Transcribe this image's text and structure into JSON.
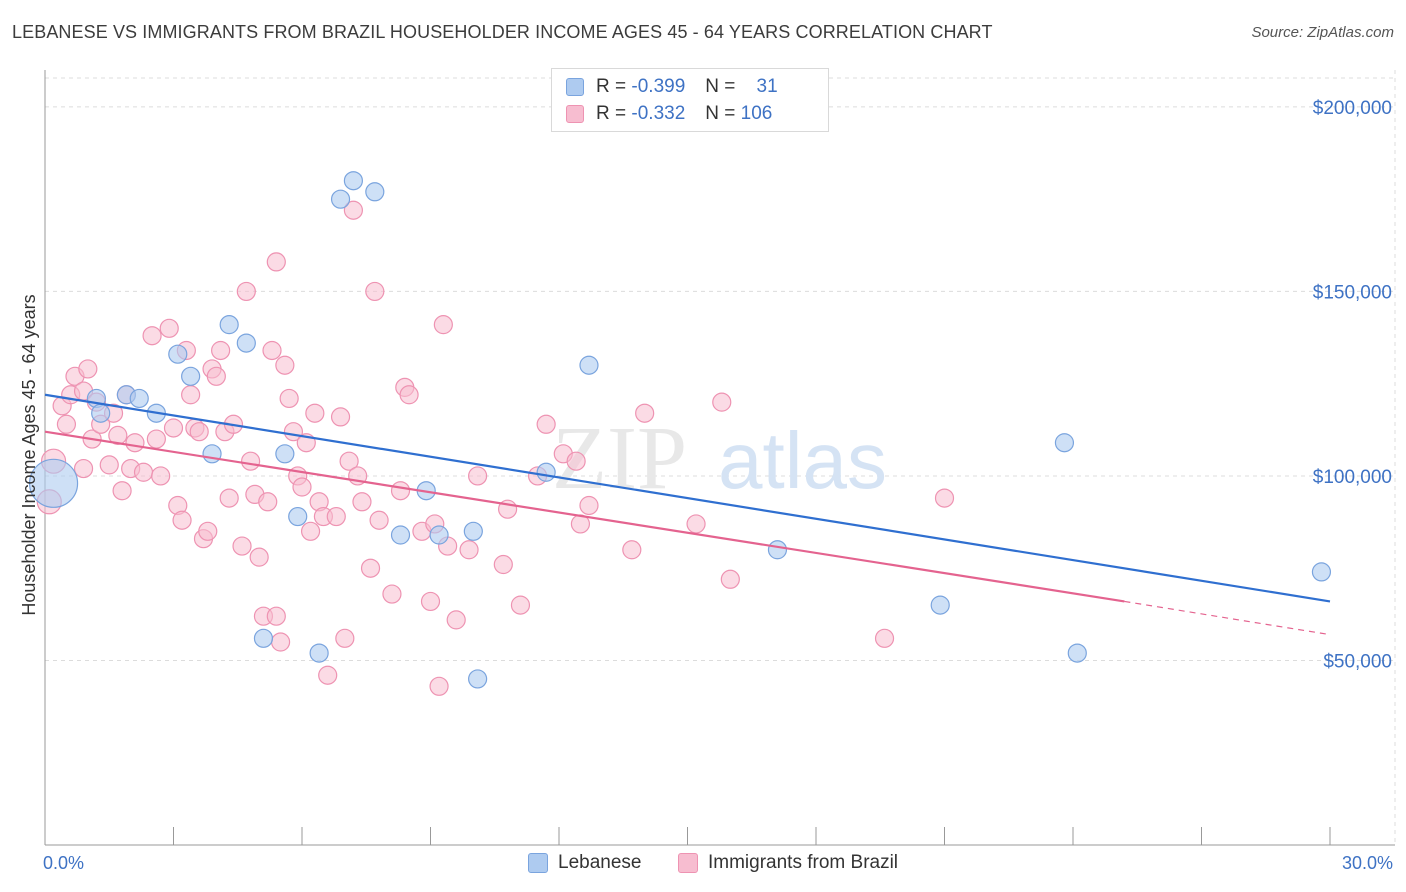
{
  "title": "LEBANESE VS IMMIGRANTS FROM BRAZIL HOUSEHOLDER INCOME AGES 45 - 64 YEARS CORRELATION CHART",
  "source": "Source: ZipAtlas.com",
  "watermark": {
    "zip": "ZIP",
    "atlas": "atlas"
  },
  "colors": {
    "lebanese_fill": "#aecbf0",
    "lebanese_stroke": "#7aa4de",
    "lebanese_line": "#2f6fd0",
    "brazil_fill": "#f7bdd0",
    "brazil_stroke": "#ee93b2",
    "brazil_line": "#e4638f",
    "tick_label": "#3e72c4",
    "grid": "#dcdcdc"
  },
  "legend_top": [
    {
      "r_label": "R = ",
      "r_value": "-0.399",
      "n_label": "N = ",
      "n_value": "31"
    },
    {
      "r_label": "R = ",
      "r_value": "-0.332",
      "n_label": "N = ",
      "n_value": "106"
    }
  ],
  "legend_bottom": [
    "Lebanese",
    "Immigrants from Brazil"
  ],
  "chart_data": {
    "type": "scatter",
    "title": "LEBANESE VS IMMIGRANTS FROM BRAZIL HOUSEHOLDER INCOME AGES 45 - 64 YEARS CORRELATION CHART",
    "xlabel": "",
    "ylabel": "Householder Income Ages 45 - 64 years",
    "xlim": [
      0,
      30
    ],
    "ylim": [
      0,
      210000
    ],
    "x_tick_labels": [
      "0.0%",
      "30.0%"
    ],
    "y_tick_labels": [
      "$50,000",
      "$100,000",
      "$150,000",
      "$200,000"
    ],
    "y_ticks": [
      50000,
      100000,
      150000,
      200000
    ],
    "grid": true,
    "legend_position": "top-center",
    "series": [
      {
        "name": "Lebanese",
        "r": -0.399,
        "n": 31,
        "trend": {
          "x0": 0,
          "y0": 122000,
          "x1": 30,
          "y1": 66000
        },
        "points": [
          [
            0.2,
            98000,
            24
          ],
          [
            1.2,
            121000,
            9
          ],
          [
            1.3,
            117000,
            9
          ],
          [
            1.9,
            122000,
            9
          ],
          [
            2.2,
            121000,
            9
          ],
          [
            2.6,
            117000,
            9
          ],
          [
            3.1,
            133000,
            9
          ],
          [
            3.4,
            127000,
            9
          ],
          [
            3.9,
            106000,
            9
          ],
          [
            4.3,
            141000,
            9
          ],
          [
            4.7,
            136000,
            9
          ],
          [
            5.1,
            56000,
            9
          ],
          [
            5.6,
            106000,
            9
          ],
          [
            5.9,
            89000,
            9
          ],
          [
            6.4,
            52000,
            9
          ],
          [
            6.9,
            175000,
            9
          ],
          [
            7.2,
            180000,
            9
          ],
          [
            7.7,
            177000,
            9
          ],
          [
            8.3,
            84000,
            9
          ],
          [
            8.9,
            96000,
            9
          ],
          [
            9.2,
            84000,
            9
          ],
          [
            10.0,
            85000,
            9
          ],
          [
            10.1,
            45000,
            9
          ],
          [
            11.7,
            101000,
            9
          ],
          [
            12.7,
            130000,
            9
          ],
          [
            17.1,
            80000,
            9
          ],
          [
            20.9,
            65000,
            9
          ],
          [
            23.8,
            109000,
            9
          ],
          [
            24.1,
            52000,
            9
          ],
          [
            29.8,
            74000,
            9
          ]
        ]
      },
      {
        "name": "Immigrants from Brazil",
        "r": -0.332,
        "n": 106,
        "trend": {
          "x0": 0,
          "y0": 112000,
          "x1": 25.2,
          "y1": 66000
        },
        "trend_dashed": {
          "x0": 25.2,
          "y0": 66000,
          "x1": 30,
          "y1": 57000
        },
        "points": [
          [
            0.1,
            93000,
            12
          ],
          [
            0.2,
            104000,
            12
          ],
          [
            0.4,
            119000,
            9
          ],
          [
            0.5,
            114000,
            9
          ],
          [
            0.6,
            122000,
            9
          ],
          [
            0.7,
            127000,
            9
          ],
          [
            0.9,
            102000,
            9
          ],
          [
            0.9,
            123000,
            9
          ],
          [
            1.0,
            129000,
            9
          ],
          [
            1.1,
            110000,
            9
          ],
          [
            1.2,
            120000,
            9
          ],
          [
            1.3,
            114000,
            9
          ],
          [
            1.5,
            103000,
            9
          ],
          [
            1.6,
            117000,
            9
          ],
          [
            1.7,
            111000,
            9
          ],
          [
            1.8,
            96000,
            9
          ],
          [
            1.9,
            122000,
            9
          ],
          [
            2.0,
            102000,
            9
          ],
          [
            2.1,
            109000,
            9
          ],
          [
            2.3,
            101000,
            9
          ],
          [
            2.5,
            138000,
            9
          ],
          [
            2.6,
            110000,
            9
          ],
          [
            2.7,
            100000,
            9
          ],
          [
            2.9,
            140000,
            9
          ],
          [
            3.0,
            113000,
            9
          ],
          [
            3.1,
            92000,
            9
          ],
          [
            3.2,
            88000,
            9
          ],
          [
            3.3,
            134000,
            9
          ],
          [
            3.4,
            122000,
            9
          ],
          [
            3.5,
            113000,
            9
          ],
          [
            3.6,
            112000,
            9
          ],
          [
            3.7,
            83000,
            9
          ],
          [
            3.8,
            85000,
            9
          ],
          [
            3.9,
            129000,
            9
          ],
          [
            4.0,
            127000,
            9
          ],
          [
            4.1,
            134000,
            9
          ],
          [
            4.2,
            112000,
            9
          ],
          [
            4.3,
            94000,
            9
          ],
          [
            4.4,
            114000,
            9
          ],
          [
            4.6,
            81000,
            9
          ],
          [
            4.7,
            150000,
            9
          ],
          [
            4.8,
            104000,
            9
          ],
          [
            4.9,
            95000,
            9
          ],
          [
            5.0,
            78000,
            9
          ],
          [
            5.1,
            62000,
            9
          ],
          [
            5.2,
            93000,
            9
          ],
          [
            5.3,
            134000,
            9
          ],
          [
            5.4,
            62000,
            9
          ],
          [
            5.4,
            158000,
            9
          ],
          [
            5.5,
            55000,
            9
          ],
          [
            5.6,
            130000,
            9
          ],
          [
            5.7,
            121000,
            9
          ],
          [
            5.8,
            112000,
            9
          ],
          [
            5.9,
            100000,
            9
          ],
          [
            6.0,
            97000,
            9
          ],
          [
            6.1,
            109000,
            9
          ],
          [
            6.2,
            85000,
            9
          ],
          [
            6.3,
            117000,
            9
          ],
          [
            6.4,
            93000,
            9
          ],
          [
            6.5,
            89000,
            9
          ],
          [
            6.6,
            46000,
            9
          ],
          [
            6.8,
            89000,
            9
          ],
          [
            6.9,
            116000,
            9
          ],
          [
            7.0,
            56000,
            9
          ],
          [
            7.1,
            104000,
            9
          ],
          [
            7.2,
            172000,
            9
          ],
          [
            7.3,
            100000,
            9
          ],
          [
            7.4,
            93000,
            9
          ],
          [
            7.6,
            75000,
            9
          ],
          [
            7.7,
            150000,
            9
          ],
          [
            7.8,
            88000,
            9
          ],
          [
            8.1,
            68000,
            9
          ],
          [
            8.3,
            96000,
            9
          ],
          [
            8.4,
            124000,
            9
          ],
          [
            8.5,
            122000,
            9
          ],
          [
            8.8,
            85000,
            9
          ],
          [
            9.0,
            66000,
            9
          ],
          [
            9.1,
            87000,
            9
          ],
          [
            9.2,
            43000,
            9
          ],
          [
            9.3,
            141000,
            9
          ],
          [
            9.4,
            81000,
            9
          ],
          [
            9.6,
            61000,
            9
          ],
          [
            9.9,
            80000,
            9
          ],
          [
            10.1,
            100000,
            9
          ],
          [
            10.7,
            76000,
            9
          ],
          [
            10.8,
            91000,
            9
          ],
          [
            11.1,
            65000,
            9
          ],
          [
            11.5,
            100000,
            9
          ],
          [
            11.7,
            114000,
            9
          ],
          [
            12.1,
            106000,
            9
          ],
          [
            12.4,
            104000,
            9
          ],
          [
            12.5,
            87000,
            9
          ],
          [
            12.7,
            92000,
            9
          ],
          [
            13.7,
            80000,
            9
          ],
          [
            14.0,
            117000,
            9
          ],
          [
            15.2,
            87000,
            9
          ],
          [
            15.8,
            120000,
            9
          ],
          [
            16.0,
            72000,
            9
          ],
          [
            19.6,
            56000,
            9
          ],
          [
            21.0,
            94000,
            9
          ]
        ]
      }
    ]
  }
}
